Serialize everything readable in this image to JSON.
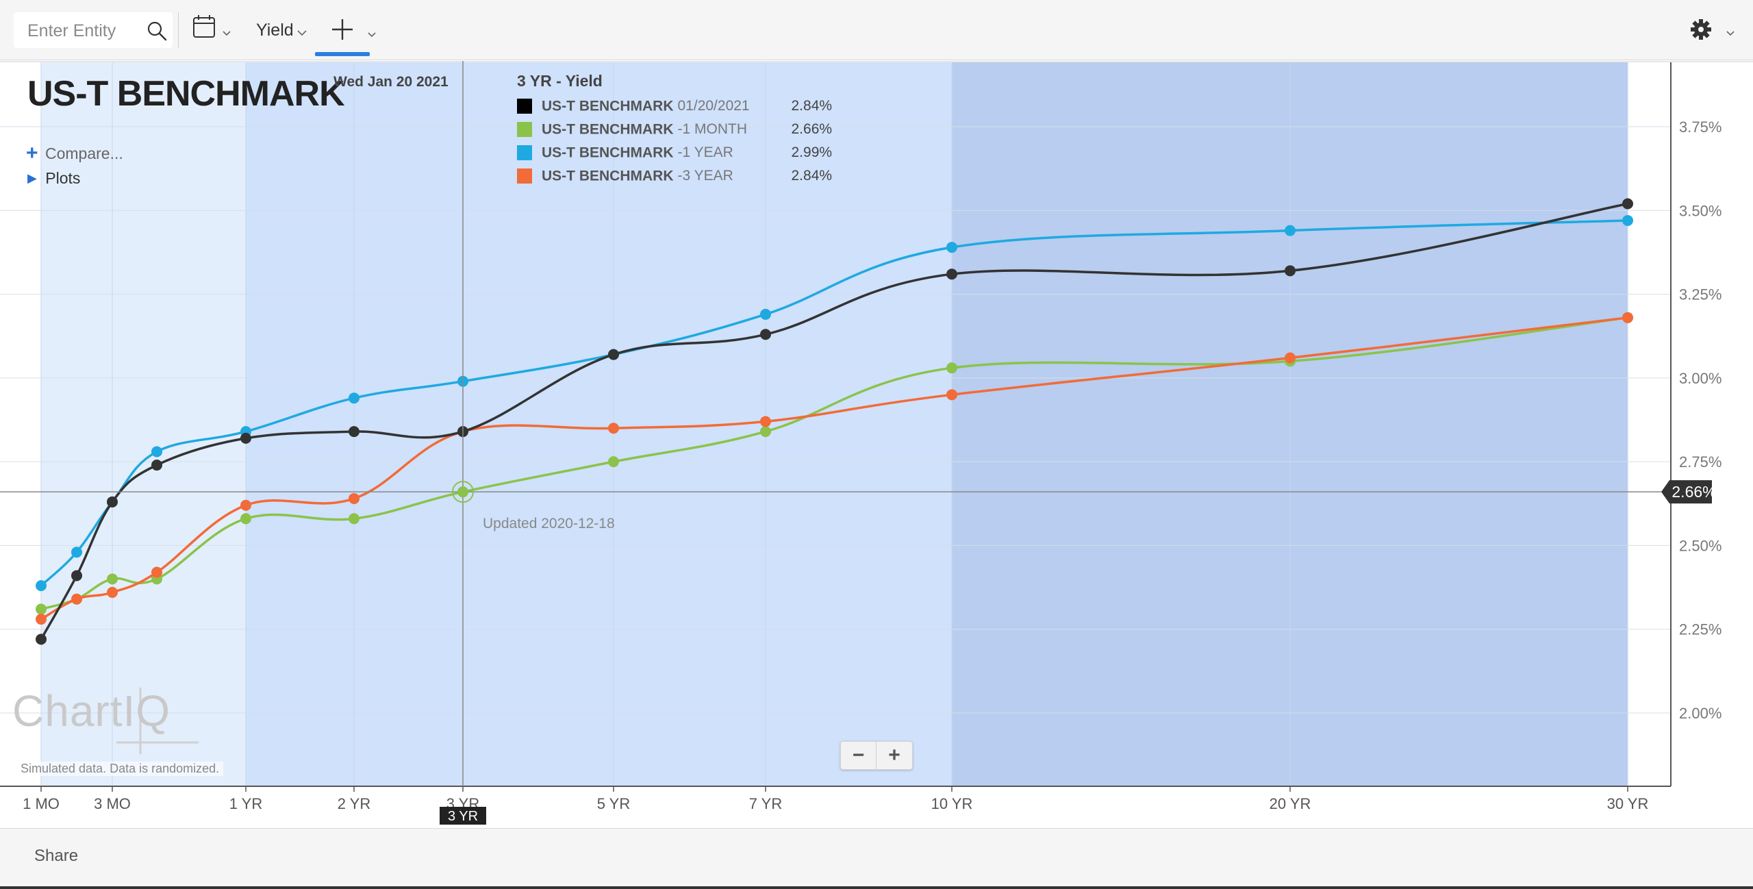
{
  "toolbar": {
    "search_placeholder": "Enter Entity",
    "yield_label": "Yield"
  },
  "chart_header": {
    "title": "US-T BENCHMARK",
    "date": "Wed Jan 20 2021",
    "compare_label": "Compare...",
    "plots_label": "Plots"
  },
  "legend": {
    "title": "3 YR - Yield",
    "items": [
      {
        "name": "US-T BENCHMARK",
        "suffix": "01/20/2021",
        "value": "2.84%",
        "color": "#000000"
      },
      {
        "name": "US-T BENCHMARK",
        "suffix": "-1 MONTH",
        "value": "2.66%",
        "color": "#8bc34a"
      },
      {
        "name": "US-T BENCHMARK",
        "suffix": "-1 YEAR",
        "value": "2.99%",
        "color": "#1fa9e1"
      },
      {
        "name": "US-T BENCHMARK",
        "suffix": "-3 YEAR",
        "value": "2.84%",
        "color": "#f26b38"
      }
    ]
  },
  "crosshair": {
    "y_label": "2.66%",
    "x_label": "3 YR",
    "updated_text": "Updated 2020-12-18"
  },
  "watermark": {
    "logo_text": "ChartIQ",
    "note": "Simulated data.  Data is randomized."
  },
  "zoom": {
    "minus": "−",
    "plus": "+"
  },
  "footer": {
    "share_label": "Share"
  },
  "chart_data": {
    "type": "line",
    "ylim": [
      1.8,
      3.95
    ],
    "y_ticks": [
      "3.75%",
      "3.50%",
      "3.25%",
      "3.00%",
      "2.75%",
      "2.50%",
      "2.25%",
      "2.00%"
    ],
    "x_tick_labels": [
      "1 MO",
      "3 MO",
      "1 YR",
      "2 YR",
      "3 YR",
      "5 YR",
      "7 YR",
      "10 YR",
      "20 YR",
      "30 YR"
    ],
    "x_tick_months": [
      1,
      3,
      12,
      24,
      36,
      60,
      84,
      120,
      240,
      360
    ],
    "x_months": [
      1,
      2,
      3,
      6,
      12,
      24,
      36,
      60,
      84,
      120,
      240,
      360
    ],
    "series": [
      {
        "name": "US-T BENCHMARK 01/20/2021",
        "color": "#333333",
        "values": [
          2.22,
          2.41,
          2.63,
          2.74,
          2.82,
          2.84,
          2.84,
          3.07,
          3.13,
          3.31,
          3.32,
          3.52
        ]
      },
      {
        "name": "US-T BENCHMARK -1 MONTH",
        "color": "#8bc34a",
        "values": [
          2.31,
          2.34,
          2.4,
          2.4,
          2.58,
          2.58,
          2.66,
          2.75,
          2.84,
          3.03,
          3.05,
          3.18
        ]
      },
      {
        "name": "US-T BENCHMARK -1 YEAR",
        "color": "#1fa9e1",
        "values": [
          2.38,
          2.48,
          2.63,
          2.78,
          2.84,
          2.94,
          2.99,
          3.07,
          3.19,
          3.39,
          3.44,
          3.47
        ]
      },
      {
        "name": "US-T BENCHMARK -3 YEAR",
        "color": "#f26b38",
        "values": [
          2.28,
          2.34,
          2.36,
          2.42,
          2.62,
          2.64,
          2.84,
          2.85,
          2.87,
          2.95,
          3.06,
          3.18
        ]
      }
    ],
    "crosshair_value": 2.66,
    "crosshair_x_month": 36
  }
}
